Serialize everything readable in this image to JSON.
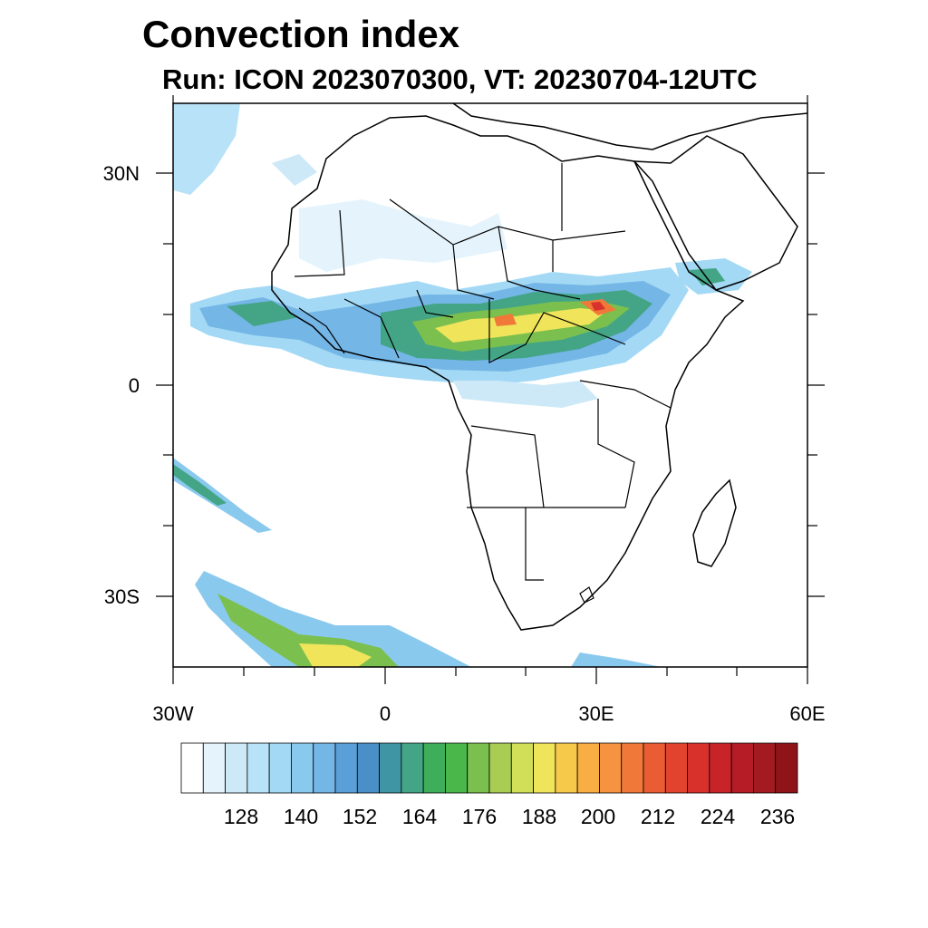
{
  "title": "Convection index",
  "subtitle": "Run: ICON 2023070300,  VT: 20230704-12UTC",
  "map": {
    "lon_range": [
      -30,
      60
    ],
    "lat_range": [
      -40,
      40
    ],
    "lat_ticks": [
      {
        "label": "30N",
        "lat": 30
      },
      {
        "label": "0",
        "lat": 0
      },
      {
        "label": "30S",
        "lat": -30
      }
    ],
    "lon_ticks": [
      {
        "label": "30W",
        "lon": -30
      },
      {
        "label": "0",
        "lon": 0
      },
      {
        "label": "30E",
        "lon": 30
      },
      {
        "label": "60E",
        "lon": 60
      }
    ]
  },
  "colorbar": {
    "labels": [
      "128",
      "140",
      "152",
      "164",
      "176",
      "188",
      "200",
      "212",
      "224",
      "236"
    ],
    "colors": [
      "#ffffff",
      "#e5f4fc",
      "#cde9f8",
      "#b8e2f7",
      "#a3d9f5",
      "#8ac9ee",
      "#74b6e6",
      "#5a9fd8",
      "#4b8fc8",
      "#3f95a3",
      "#43a586",
      "#3fae5a",
      "#4ab74b",
      "#7bc04e",
      "#a8cd52",
      "#d1df58",
      "#efe45a",
      "#f7c94b",
      "#f9ae44",
      "#f69340",
      "#f0793a",
      "#ea5c33",
      "#e2432e",
      "#d8302b",
      "#c9232a",
      "#b51c26",
      "#a41a21",
      "#8e1419"
    ]
  }
}
